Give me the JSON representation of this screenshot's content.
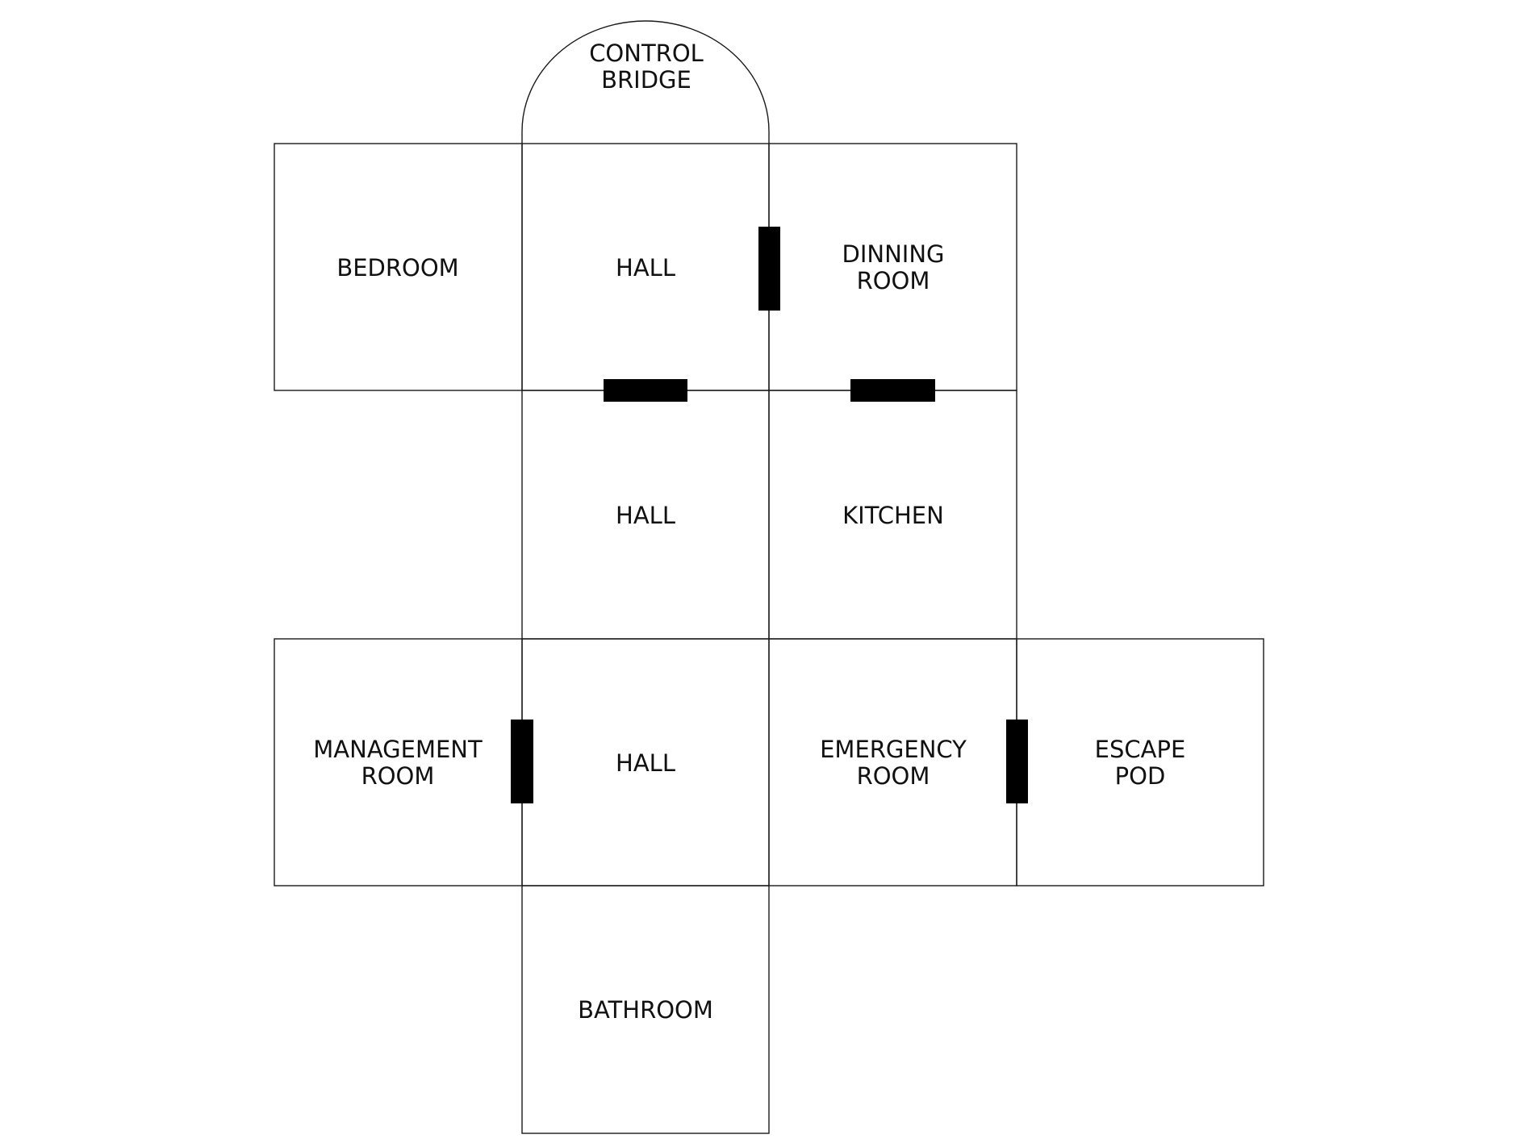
{
  "diagram": {
    "type": "floor-plan",
    "colors": {
      "background": "#ffffff",
      "wall": "#1a1a1a",
      "door": "#000000",
      "text": "#111111"
    },
    "rooms": {
      "control_bridge": {
        "line1": "CONTROL",
        "line2": "BRIDGE"
      },
      "bedroom": {
        "line1": "BEDROOM"
      },
      "hall_top": {
        "line1": "HALL"
      },
      "dinning_room": {
        "line1": "DINNING",
        "line2": "ROOM"
      },
      "hall_middle": {
        "line1": "HALL"
      },
      "kitchen": {
        "line1": "KITCHEN"
      },
      "management_room": {
        "line1": "MANAGEMENT",
        "line2": "ROOM"
      },
      "hall_bottom": {
        "line1": "HALL"
      },
      "emergency_room": {
        "line1": "EMERGENCY",
        "line2": "ROOM"
      },
      "escape_pod": {
        "line1": "ESCAPE",
        "line2": "POD"
      },
      "bathroom": {
        "line1": "BATHROOM"
      }
    }
  }
}
